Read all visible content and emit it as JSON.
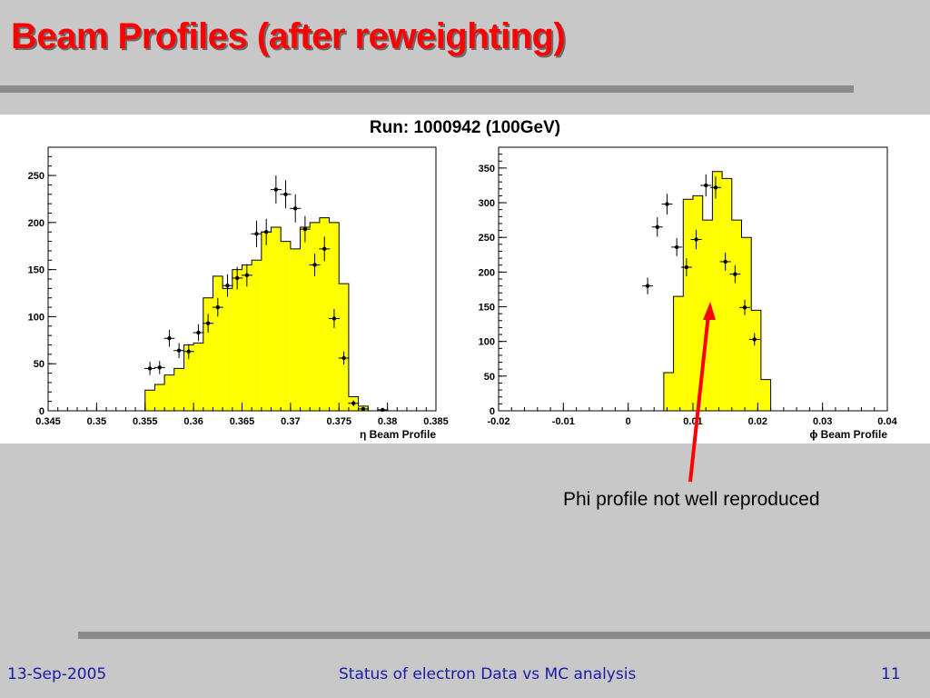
{
  "slide": {
    "title": "Beam Profiles (after reweighting)",
    "run_title": "Run: 1000942 (100GeV)",
    "annotation": "Phi profile not well reproduced",
    "footer": {
      "date": "13-Sep-2005",
      "center": "Status of electron Data vs MC analysis",
      "page": "11"
    },
    "colors": {
      "title": "#ff0000",
      "fill": "#ffff00",
      "arrow": "#ff0000",
      "footer": "#1a1aa6"
    }
  },
  "chart_data": [
    {
      "type": "bar",
      "xlabel": "η Beam Profile",
      "xlim": [
        0.345,
        0.385
      ],
      "ylim": [
        0,
        280
      ],
      "xticks": [
        "0.345",
        "0.35",
        "0.355",
        "0.36",
        "0.365",
        "0.37",
        "0.375",
        "0.38",
        "0.385"
      ],
      "yticks": [
        "0",
        "50",
        "100",
        "150",
        "200",
        "250"
      ],
      "mc_histogram": {
        "bin_edges": [
          0.345,
          0.346,
          0.347,
          0.348,
          0.349,
          0.35,
          0.351,
          0.352,
          0.353,
          0.354,
          0.355,
          0.356,
          0.357,
          0.358,
          0.359,
          0.36,
          0.361,
          0.362,
          0.363,
          0.364,
          0.365,
          0.366,
          0.367,
          0.368,
          0.369,
          0.37,
          0.371,
          0.372,
          0.373,
          0.374,
          0.375,
          0.376,
          0.377,
          0.378,
          0.379,
          0.38,
          0.381,
          0.382,
          0.383,
          0.384,
          0.385
        ],
        "values": [
          0,
          0,
          0,
          0,
          0,
          0,
          0,
          0,
          0,
          0,
          22,
          28,
          38,
          45,
          70,
          72,
          120,
          143,
          130,
          150,
          155,
          160,
          190,
          195,
          180,
          172,
          195,
          200,
          205,
          200,
          135,
          15,
          5,
          0,
          0,
          0,
          0,
          0,
          0,
          0
        ]
      },
      "data_points": {
        "x": [
          0.3555,
          0.3565,
          0.3575,
          0.3585,
          0.3595,
          0.3605,
          0.3615,
          0.3625,
          0.3635,
          0.3645,
          0.3655,
          0.3665,
          0.3675,
          0.3685,
          0.3695,
          0.3705,
          0.3715,
          0.3725,
          0.3735,
          0.3745,
          0.3755,
          0.3765,
          0.3775,
          0.3795
        ],
        "y": [
          45,
          46,
          77,
          64,
          63,
          83,
          93,
          110,
          133,
          141,
          144,
          188,
          190,
          235,
          230,
          215,
          193,
          155,
          172,
          98,
          56,
          8,
          2,
          1
        ],
        "err": [
          7,
          7,
          9,
          8,
          8,
          9,
          10,
          10,
          12,
          12,
          12,
          14,
          14,
          15,
          15,
          15,
          14,
          12,
          13,
          10,
          7,
          3,
          1,
          1
        ]
      }
    },
    {
      "type": "bar",
      "xlabel": "ϕ Beam Profile",
      "xlim": [
        -0.02,
        0.04
      ],
      "ylim": [
        0,
        380
      ],
      "xticks": [
        "-0.02",
        "-0.01",
        "0",
        "0.01",
        "0.02",
        "0.03",
        "0.04"
      ],
      "yticks": [
        "0",
        "50",
        "100",
        "150",
        "200",
        "250",
        "300",
        "350"
      ],
      "mc_histogram": {
        "bin_edges": [
          -0.02,
          -0.0185,
          -0.017,
          -0.0155,
          -0.014,
          -0.0125,
          -0.011,
          -0.0095,
          -0.008,
          -0.0065,
          -0.005,
          -0.0035,
          -0.002,
          -0.0005,
          0.001,
          0.0025,
          0.004,
          0.0055,
          0.007,
          0.0085,
          0.01,
          0.0115,
          0.013,
          0.0145,
          0.016,
          0.0175,
          0.019,
          0.0205,
          0.022,
          0.0235,
          0.025,
          0.0265,
          0.028,
          0.0295,
          0.031,
          0.0325,
          0.034,
          0.0355,
          0.037,
          0.0385,
          0.04
        ],
        "values": [
          0,
          0,
          0,
          0,
          0,
          0,
          0,
          0,
          0,
          0,
          0,
          0,
          0,
          0,
          0,
          0,
          0,
          55,
          165,
          305,
          310,
          275,
          345,
          335,
          275,
          250,
          145,
          45,
          0,
          0,
          0,
          0,
          0,
          0,
          0,
          0,
          0,
          0,
          0,
          0
        ]
      },
      "data_points": {
        "x": [
          0.003,
          0.0045,
          0.006,
          0.0075,
          0.009,
          0.0105,
          0.012,
          0.0135,
          0.015,
          0.0165,
          0.018,
          0.0195
        ],
        "y": [
          180,
          265,
          298,
          236,
          207,
          247,
          325,
          322,
          215,
          197,
          149,
          103
        ],
        "err": [
          12,
          14,
          15,
          13,
          13,
          14,
          16,
          16,
          13,
          13,
          11,
          9
        ]
      }
    }
  ]
}
